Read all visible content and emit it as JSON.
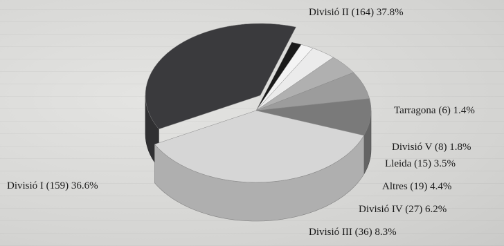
{
  "chart_data": {
    "type": "pie",
    "style": "3d",
    "slices": [
      {
        "label": "Divisió II",
        "count": 164,
        "percent": 37.8,
        "color": "#3a3a3d"
      },
      {
        "label": "Tarragona",
        "count": 6,
        "percent": 1.4,
        "color": "#1a1a1a"
      },
      {
        "label": "Divisió V",
        "count": 8,
        "percent": 1.8,
        "color": "#f4f4f4"
      },
      {
        "label": "Lleida",
        "count": 15,
        "percent": 3.5,
        "color": "#ebebeb"
      },
      {
        "label": "Altres",
        "count": 19,
        "percent": 4.4,
        "color": "#b0b0b0"
      },
      {
        "label": "Divisió IV",
        "count": 27,
        "percent": 6.2,
        "color": "#9c9c9c"
      },
      {
        "label": "Divisió III",
        "count": 36,
        "percent": 8.3,
        "color": "#7a7a7a"
      },
      {
        "label": "Divisió I",
        "count": 159,
        "percent": 36.6,
        "color": "#d6d6d6"
      }
    ],
    "label_text": [
      "Divisió II (164) 37.8%",
      "Tarragona (6) 1.4%",
      "Divisió V (8) 1.8%",
      "Lleida (15) 3.5%",
      "Altres (19) 4.4%",
      "Divisió IV (27) 6.2%",
      "Divisió III (36) 8.3%",
      "Divisió I (159) 36.6%"
    ]
  }
}
